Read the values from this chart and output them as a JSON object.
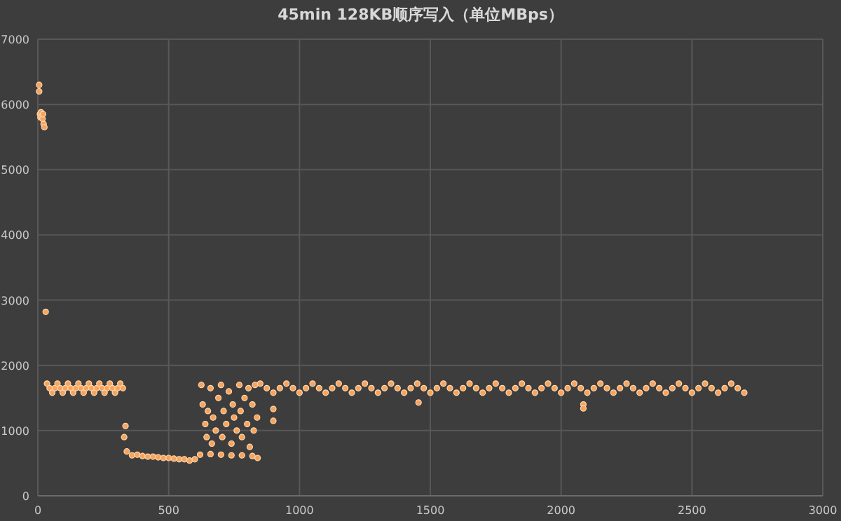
{
  "chart_data": {
    "type": "scatter",
    "title": "45min 128KB顺序写入（单位MBps）",
    "color": "#f7a45e",
    "marker": "circle",
    "grid": true,
    "xlim": [
      0,
      3000
    ],
    "xticks": [
      0,
      500,
      1000,
      1500,
      2000,
      2500,
      3000
    ],
    "ylim": [
      0,
      7000
    ],
    "yticks": [
      0,
      1000,
      2000,
      3000,
      4000,
      5000,
      6000,
      7000
    ],
    "x": [
      5,
      5,
      8,
      10,
      12,
      15,
      18,
      20,
      22,
      25,
      30,
      35,
      45,
      55,
      65,
      75,
      85,
      95,
      105,
      115,
      125,
      135,
      145,
      155,
      165,
      175,
      185,
      195,
      205,
      215,
      225,
      235,
      245,
      255,
      265,
      275,
      285,
      295,
      305,
      315,
      325,
      335,
      330,
      340,
      360,
      380,
      400,
      420,
      440,
      460,
      480,
      500,
      520,
      540,
      560,
      580,
      600,
      620,
      660,
      700,
      740,
      780,
      820,
      840,
      625,
      630,
      640,
      645,
      650,
      660,
      665,
      670,
      680,
      690,
      700,
      705,
      710,
      720,
      730,
      740,
      745,
      750,
      760,
      770,
      775,
      780,
      790,
      800,
      805,
      810,
      820,
      825,
      830,
      838,
      900,
      900,
      1455,
      2085,
      2085,
      850,
      875,
      900,
      925,
      950,
      975,
      1000,
      1025,
      1050,
      1075,
      1100,
      1125,
      1150,
      1175,
      1200,
      1225,
      1250,
      1275,
      1300,
      1325,
      1350,
      1375,
      1400,
      1425,
      1450,
      1475,
      1500,
      1525,
      1550,
      1575,
      1600,
      1625,
      1650,
      1675,
      1700,
      1725,
      1750,
      1775,
      1800,
      1825,
      1850,
      1875,
      1900,
      1925,
      1950,
      1975,
      2000,
      2025,
      2050,
      2075,
      2100,
      2125,
      2150,
      2175,
      2200,
      2225,
      2250,
      2275,
      2300,
      2325,
      2350,
      2375,
      2400,
      2425,
      2450,
      2475,
      2500,
      2525,
      2550,
      2575,
      2600,
      2625,
      2650,
      2675,
      2700
    ],
    "values": [
      6300,
      6200,
      5850,
      5800,
      5880,
      5820,
      5780,
      5850,
      5700,
      5650,
      2820,
      1720,
      1650,
      1580,
      1650,
      1720,
      1650,
      1580,
      1650,
      1720,
      1650,
      1580,
      1650,
      1720,
      1650,
      1580,
      1650,
      1720,
      1650,
      1580,
      1650,
      1720,
      1650,
      1580,
      1650,
      1720,
      1650,
      1580,
      1650,
      1720,
      1650,
      1070,
      900,
      680,
      620,
      630,
      610,
      600,
      600,
      590,
      580,
      580,
      570,
      560,
      560,
      540,
      560,
      630,
      640,
      630,
      620,
      620,
      610,
      580,
      1700,
      1400,
      1100,
      900,
      1300,
      1650,
      800,
      1200,
      1000,
      1500,
      1700,
      900,
      1300,
      1100,
      1600,
      800,
      1400,
      1200,
      1000,
      1700,
      1300,
      900,
      1500,
      1100,
      1650,
      750,
      1400,
      1000,
      1700,
      1200,
      1330,
      1150,
      1430,
      1400,
      1340,
      1720,
      1650,
      1580,
      1650,
      1720,
      1650,
      1580,
      1650,
      1720,
      1650,
      1580,
      1650,
      1720,
      1650,
      1580,
      1650,
      1720,
      1650,
      1580,
      1650,
      1720,
      1650,
      1580,
      1650,
      1720,
      1650,
      1580,
      1650,
      1720,
      1650,
      1580,
      1650,
      1720,
      1650,
      1580,
      1650,
      1720,
      1650,
      1580,
      1650,
      1720,
      1650,
      1580,
      1650,
      1720,
      1650,
      1580,
      1650,
      1720,
      1650,
      1580,
      1650,
      1720,
      1650,
      1580,
      1650,
      1720,
      1650,
      1580,
      1650,
      1720,
      1650,
      1580,
      1650,
      1720,
      1650,
      1580,
      1650,
      1720,
      1650,
      1580,
      1650,
      1720,
      1650,
      1580
    ]
  }
}
